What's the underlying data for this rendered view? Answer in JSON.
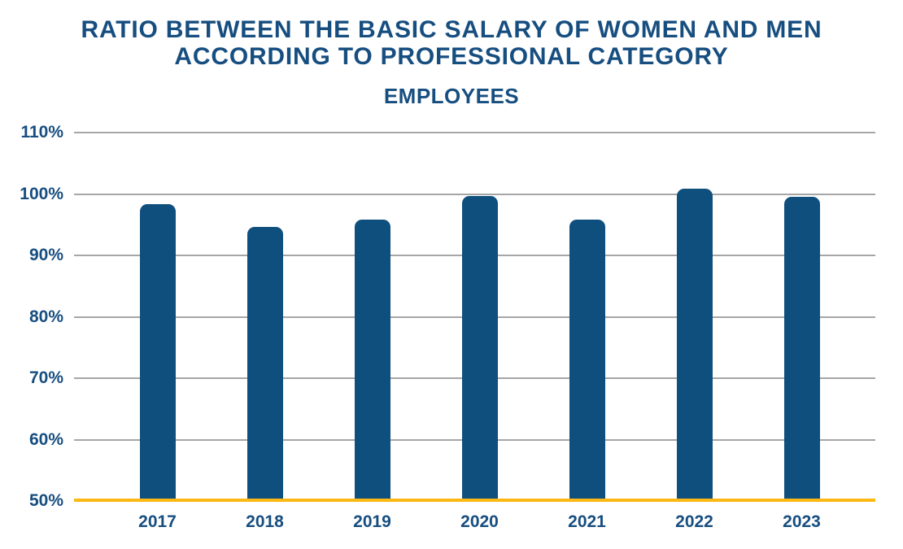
{
  "chart": {
    "title": "RATIO BETWEEN THE BASIC SALARY OF WOMEN AND MEN\nACCORDING TO PROFESSIONAL CATEGORY",
    "subtitle": "EMPLOYEES"
  },
  "chart_data": {
    "type": "bar",
    "title": "RATIO BETWEEN THE BASIC SALARY OF WOMEN AND MEN ACCORDING TO PROFESSIONAL CATEGORY",
    "subtitle": "EMPLOYEES",
    "categories": [
      "2017",
      "2018",
      "2019",
      "2020",
      "2021",
      "2022",
      "2023"
    ],
    "values": [
      98.3,
      94.6,
      95.8,
      99.7,
      95.8,
      100.8,
      99.6
    ],
    "xlabel": "",
    "ylabel": "",
    "ylim": [
      50,
      110
    ],
    "yticks": [
      110,
      100,
      90,
      80,
      70,
      60,
      50
    ],
    "ytick_labels": [
      "110%",
      "100%",
      "90%",
      "80%",
      "70%",
      "60%",
      "50%"
    ],
    "grid": true,
    "legend": false,
    "baseline_value": 50,
    "colors": {
      "bar": "#0f4f7d",
      "text": "#174e80",
      "gridline": "#a6a6a6",
      "baseline": "#fcb813",
      "background": "#ffffff"
    }
  }
}
